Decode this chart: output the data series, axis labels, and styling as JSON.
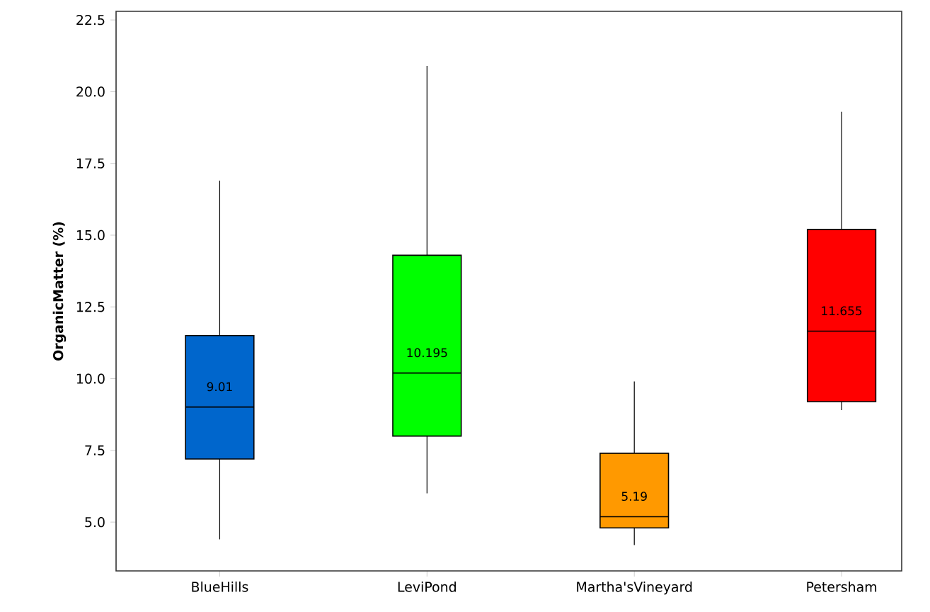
{
  "chart_data": {
    "type": "box",
    "ylabel": "OrganicMatter (%)",
    "categories": [
      "BlueHills",
      "LeviPond",
      "Martha'sVineyard",
      "Petersham"
    ],
    "colors": [
      "#0066cc",
      "#00ff00",
      "#ff9900",
      "#ff0000"
    ],
    "boxes": [
      {
        "low": 4.4,
        "q1": 7.2,
        "median": 9.01,
        "q3": 11.5,
        "high": 16.9
      },
      {
        "low": 6.0,
        "q1": 8.0,
        "median": 10.195,
        "q3": 14.3,
        "high": 20.9
      },
      {
        "low": 4.2,
        "q1": 4.8,
        "median": 5.19,
        "q3": 7.4,
        "high": 9.9
      },
      {
        "low": 8.9,
        "q1": 9.2,
        "median": 11.655,
        "q3": 15.2,
        "high": 19.3
      }
    ],
    "value_labels": [
      "9.01",
      "10.195",
      "5.19",
      "11.655"
    ],
    "ylim": [
      3.3,
      22.8
    ],
    "yticks": [
      {
        "value": 5,
        "label": "5.0"
      },
      7.5,
      {
        "value": 10,
        "label": "10.0"
      },
      12.5,
      {
        "value": 15,
        "label": "15.0"
      },
      17.5,
      {
        "value": 20,
        "label": "20.0"
      },
      22.5
    ]
  }
}
